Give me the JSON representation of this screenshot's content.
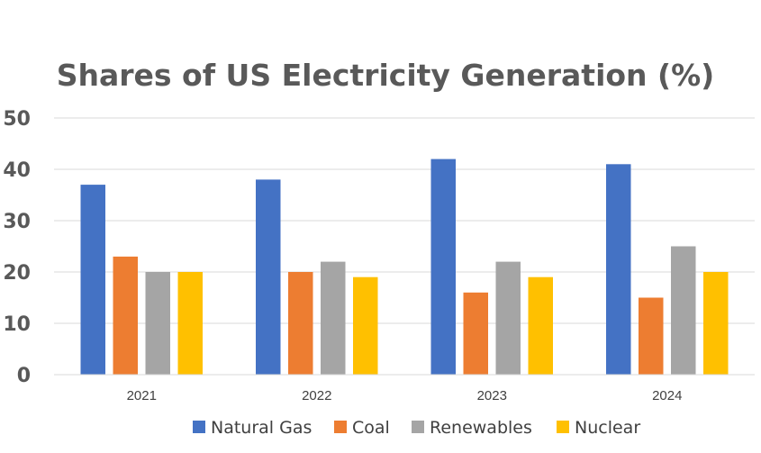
{
  "chart_data": {
    "type": "bar",
    "title": "Shares of US Electricity Generation (%)",
    "xlabel": "",
    "ylabel": "",
    "categories": [
      "2021",
      "2022",
      "2023",
      "2024"
    ],
    "ylim": [
      0,
      50
    ],
    "yticks": [
      "0",
      "10",
      "20",
      "30",
      "40",
      "50"
    ],
    "grid": true,
    "legend_position": "bottom",
    "series": [
      {
        "name": "Natural Gas",
        "color": "#4472C4",
        "values": [
          37,
          38,
          42,
          41
        ]
      },
      {
        "name": "Coal",
        "color": "#ED7D31",
        "values": [
          23,
          20,
          16,
          15
        ]
      },
      {
        "name": "Renewables",
        "color": "#A5A5A5",
        "values": [
          20,
          22,
          22,
          25
        ]
      },
      {
        "name": "Nuclear",
        "color": "#FFC000",
        "values": [
          20,
          19,
          19,
          20
        ]
      }
    ]
  }
}
